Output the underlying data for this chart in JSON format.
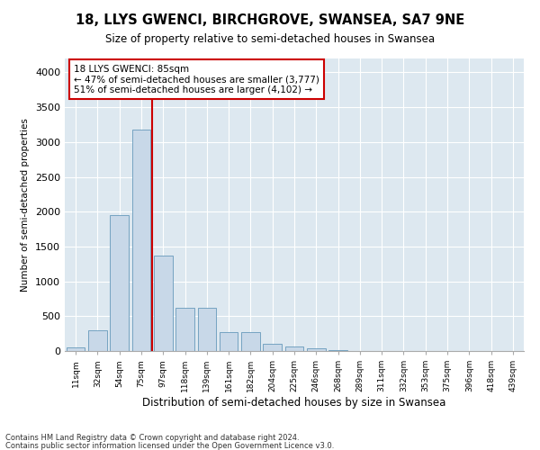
{
  "title": "18, LLYS GWENCI, BIRCHGROVE, SWANSEA, SA7 9NE",
  "subtitle": "Size of property relative to semi-detached houses in Swansea",
  "xlabel": "Distribution of semi-detached houses by size in Swansea",
  "ylabel": "Number of semi-detached properties",
  "footnote1": "Contains HM Land Registry data © Crown copyright and database right 2024.",
  "footnote2": "Contains public sector information licensed under the Open Government Licence v3.0.",
  "bar_color": "#c8d8e8",
  "bar_edge_color": "#6699bb",
  "line_color": "#cc0000",
  "annotation_box_color": "#cc0000",
  "background_color": "#dde8f0",
  "categories": [
    "11sqm",
    "32sqm",
    "54sqm",
    "75sqm",
    "97sqm",
    "118sqm",
    "139sqm",
    "161sqm",
    "182sqm",
    "204sqm",
    "225sqm",
    "246sqm",
    "268sqm",
    "289sqm",
    "311sqm",
    "332sqm",
    "353sqm",
    "375sqm",
    "396sqm",
    "418sqm",
    "439sqm"
  ],
  "values": [
    50,
    300,
    1950,
    3175,
    1375,
    625,
    625,
    270,
    270,
    100,
    70,
    45,
    12,
    5,
    2,
    2,
    1,
    1,
    1,
    0,
    0
  ],
  "ylim": [
    0,
    4200
  ],
  "yticks": [
    0,
    500,
    1000,
    1500,
    2000,
    2500,
    3000,
    3500,
    4000
  ],
  "vline_x_index": 3.5,
  "annotation_text_line1": "18 LLYS GWENCI: 85sqm",
  "annotation_text_line2": "← 47% of semi-detached houses are smaller (3,777)",
  "annotation_text_line3": "51% of semi-detached houses are larger (4,102) →"
}
